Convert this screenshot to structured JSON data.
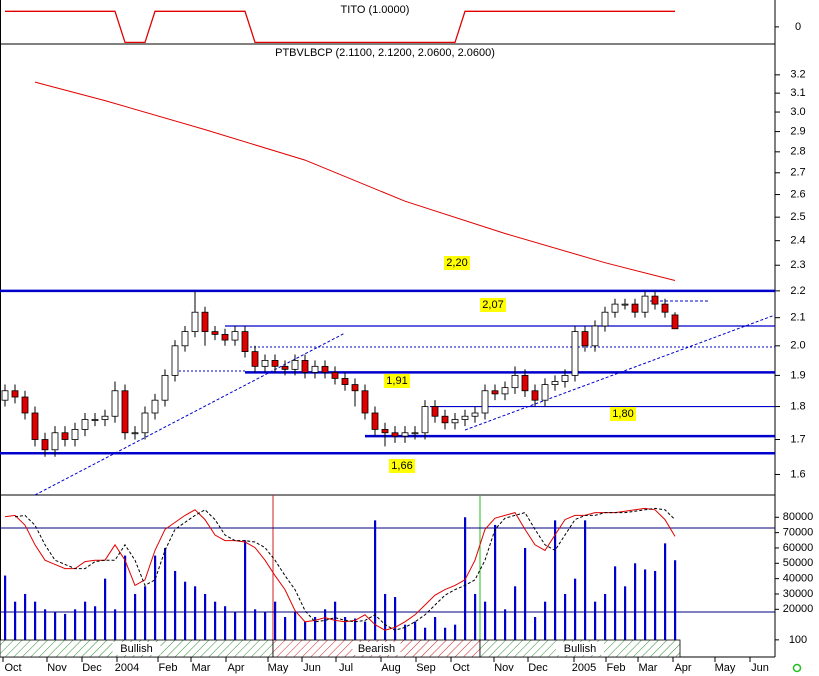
{
  "chart_data": [
    {
      "type": "step",
      "title": "TITO (1.0000)",
      "color": "#e00000",
      "values": [
        1,
        1,
        1,
        1,
        1,
        1,
        1,
        1,
        1,
        1,
        1,
        1,
        -1,
        -1,
        -1,
        1,
        1,
        1,
        1,
        1,
        1,
        1,
        1,
        1,
        1,
        -1,
        -1,
        -1,
        -1,
        -1,
        -1,
        -1,
        -1,
        -1,
        -1,
        -1,
        -1,
        -1,
        -1,
        -1,
        -1,
        -1,
        -1,
        -1,
        -1,
        -1,
        1,
        1,
        1,
        1,
        1,
        1,
        1,
        1,
        1,
        1,
        1,
        1,
        1,
        1,
        1,
        1,
        1,
        1,
        1,
        1,
        1,
        1
      ],
      "ylim": [
        -1.1,
        1.6
      ],
      "yticks": [
        0
      ]
    },
    {
      "type": "candlestick",
      "title": "PTBVLBCP (2.1100, 2.1200, 2.0600, 2.0600)",
      "open": [
        1.82,
        1.85,
        1.83,
        1.78,
        1.7,
        1.67,
        1.72,
        1.7,
        1.73,
        1.76,
        1.76,
        1.77,
        1.85,
        1.72,
        1.72,
        1.78,
        1.82,
        1.9,
        2.0,
        2.05,
        2.12,
        2.05,
        2.04,
        2.02,
        2.05,
        1.98,
        1.93,
        1.95,
        1.93,
        1.92,
        1.95,
        1.91,
        1.93,
        1.91,
        1.89,
        1.87,
        1.85,
        1.78,
        1.73,
        1.72,
        1.71,
        1.72,
        1.72,
        1.8,
        1.77,
        1.75,
        1.76,
        1.77,
        1.78,
        1.85,
        1.84,
        1.86,
        1.9,
        1.85,
        1.82,
        1.87,
        1.88,
        1.9,
        2.05,
        2.0,
        2.07,
        2.12,
        2.15,
        2.15,
        2.12,
        2.18,
        2.15,
        2.11
      ],
      "high": [
        1.87,
        1.87,
        1.85,
        1.8,
        1.72,
        1.74,
        1.74,
        1.75,
        1.78,
        1.78,
        1.79,
        1.88,
        1.87,
        1.74,
        1.8,
        1.84,
        1.92,
        2.02,
        2.07,
        2.2,
        2.14,
        2.07,
        2.06,
        2.07,
        2.07,
        2.0,
        1.97,
        1.97,
        1.95,
        1.97,
        1.97,
        1.95,
        1.95,
        1.93,
        1.91,
        1.89,
        1.87,
        1.8,
        1.75,
        1.74,
        1.74,
        1.74,
        1.82,
        1.82,
        1.79,
        1.78,
        1.79,
        1.8,
        1.87,
        1.87,
        1.88,
        1.93,
        1.92,
        1.87,
        1.89,
        1.9,
        1.92,
        2.07,
        2.07,
        2.09,
        2.14,
        2.17,
        2.17,
        2.17,
        2.2,
        2.2,
        2.17,
        2.12
      ],
      "low": [
        1.8,
        1.81,
        1.76,
        1.68,
        1.65,
        1.65,
        1.68,
        1.68,
        1.71,
        1.74,
        1.74,
        1.75,
        1.7,
        1.7,
        1.7,
        1.76,
        1.8,
        1.88,
        1.98,
        2.03,
        2.0,
        2.02,
        2.0,
        2.0,
        1.96,
        1.91,
        1.91,
        1.91,
        1.9,
        1.9,
        1.89,
        1.89,
        1.89,
        1.87,
        1.85,
        1.8,
        1.76,
        1.71,
        1.68,
        1.69,
        1.69,
        1.7,
        1.7,
        1.75,
        1.73,
        1.73,
        1.74,
        1.75,
        1.76,
        1.82,
        1.82,
        1.84,
        1.83,
        1.8,
        1.8,
        1.85,
        1.86,
        1.88,
        1.98,
        1.98,
        2.05,
        2.1,
        2.13,
        2.1,
        2.1,
        2.13,
        2.1,
        2.06
      ],
      "close": [
        1.85,
        1.83,
        1.78,
        1.7,
        1.67,
        1.72,
        1.7,
        1.73,
        1.76,
        1.76,
        1.77,
        1.85,
        1.72,
        1.72,
        1.78,
        1.82,
        1.9,
        2.0,
        2.05,
        2.12,
        2.05,
        2.04,
        2.02,
        2.05,
        1.98,
        1.93,
        1.95,
        1.93,
        1.92,
        1.95,
        1.91,
        1.93,
        1.91,
        1.89,
        1.87,
        1.85,
        1.78,
        1.73,
        1.72,
        1.71,
        1.72,
        1.72,
        1.8,
        1.77,
        1.75,
        1.76,
        1.77,
        1.78,
        1.85,
        1.84,
        1.86,
        1.9,
        1.85,
        1.82,
        1.87,
        1.88,
        1.9,
        2.05,
        2.0,
        2.07,
        2.12,
        2.15,
        2.15,
        2.12,
        2.18,
        2.15,
        2.12,
        2.06
      ],
      "up_color": "#ffffff",
      "down_color": "#e00000",
      "ma_x": [
        3,
        10,
        20,
        30,
        40,
        50,
        60,
        67
      ],
      "ma_values": [
        3.16,
        3.06,
        2.91,
        2.76,
        2.57,
        2.43,
        2.31,
        2.24
      ],
      "ma_color": "#e00000",
      "levels": [
        {
          "value": 2.2,
          "label": "2,20",
          "thick": true,
          "start": -0.5
        },
        {
          "value": 2.07,
          "label": "2,07",
          "thick": false,
          "start": 22
        },
        {
          "value": 1.91,
          "label": "1,91",
          "thick": true,
          "start": 24
        },
        {
          "value": 1.8,
          "label": "1,80",
          "thick": false,
          "start": 42.5
        },
        {
          "value": 1.71,
          "label": null,
          "thick": true,
          "start": 36
        },
        {
          "value": 1.66,
          "label": "1,66",
          "thick": true,
          "start": -0.5
        }
      ],
      "level_color": "#0000cc",
      "log": true,
      "ylim": [
        1.544,
        3.37
      ],
      "xlim": [
        -0.5,
        77
      ],
      "yticks": [
        3.2,
        3.1,
        {
          "value": 3,
          "label": "3.0"
        },
        2.9,
        2.8,
        2.7,
        2.6,
        2.5,
        2.4,
        2.3,
        2.2,
        2.1,
        {
          "value": 2,
          "label": "2.0"
        },
        1.9,
        1.8,
        1.7,
        1.6
      ]
    },
    {
      "type": "volume",
      "color": "#0000cc",
      "values": [
        42000,
        25000,
        30000,
        25000,
        20000,
        18000,
        17000,
        20000,
        25000,
        22000,
        40000,
        20000,
        55000,
        30000,
        35000,
        55000,
        60000,
        45000,
        38000,
        35000,
        30000,
        25000,
        22000,
        18000,
        65000,
        20000,
        18000,
        25000,
        15000,
        18000,
        12000,
        15000,
        20000,
        25000,
        15000,
        14000,
        12000,
        78000,
        30000,
        28000,
        10000,
        12000,
        8000,
        15000,
        8000,
        10000,
        80000,
        30000,
        25000,
        75000,
        20000,
        35000,
        60000,
        15000,
        25000,
        78000,
        30000,
        40000,
        78000,
        25000,
        30000,
        48000,
        35000,
        50000,
        46000,
        45000,
        63000,
        52000
      ],
      "ylim": [
        0,
        88000
      ],
      "yticks": [
        80000,
        70000,
        60000,
        50000,
        40000,
        30000,
        20000,
        100
      ],
      "oscillator": {
        "ylim": [
          0,
          100
        ],
        "levels": [
          80,
          20
        ],
        "level_color": "#000080",
        "series": [
          {
            "color": "#e00000",
            "dashed": false,
            "values": [
              88,
              89,
              82,
              68,
              57,
              54,
              51,
              51,
              56,
              57,
              57,
              68,
              57,
              39,
              43,
              64,
              79,
              84,
              89,
              93,
              86,
              75,
              71,
              71,
              70,
              66,
              57,
              46,
              36,
              21,
              13,
              14,
              16,
              14,
              13,
              14,
              18,
              11,
              7,
              9,
              13,
              18,
              25,
              32,
              36,
              39,
              43,
              57,
              79,
              87,
              89,
              91,
              79,
              68,
              64,
              75,
              86,
              89,
              89,
              91,
              91,
              91,
              92,
              93,
              94,
              93,
              86,
              74
            ]
          },
          {
            "color": "#000000",
            "dashed": true,
            "values": [
              null,
              88,
              89,
              82,
              68,
              57,
              54,
              51,
              51,
              56,
              57,
              57,
              68,
              57,
              39,
              43,
              64,
              79,
              84,
              89,
              93,
              86,
              75,
              71,
              71,
              70,
              66,
              57,
              46,
              36,
              21,
              13,
              14,
              16,
              14,
              13,
              14,
              18,
              11,
              7,
              9,
              13,
              18,
              25,
              32,
              36,
              39,
              43,
              57,
              79,
              87,
              89,
              91,
              79,
              68,
              64,
              75,
              86,
              89,
              89,
              91,
              91,
              91,
              92,
              93,
              94,
              93,
              86
            ]
          }
        ]
      },
      "regimes": [
        {
          "label": "Bullish",
          "start": -0.5,
          "end": 26.8,
          "color": "#2e8b2e"
        },
        {
          "label": "Bearish",
          "start": 26.8,
          "end": 47.5,
          "color": "#d02020"
        },
        {
          "label": "Bullish",
          "start": 47.5,
          "end": 67.5,
          "color": "#2e8b2e"
        }
      ],
      "xlim": [
        -0.5,
        77
      ],
      "xticks": [
        {
          "value": 0.8,
          "label": "Oct"
        },
        {
          "value": 5.2,
          "label": "Nov"
        },
        {
          "value": 8.7,
          "label": "Dec"
        },
        {
          "value": 12.2,
          "label": "2004"
        },
        {
          "value": 16.3,
          "label": "Feb"
        },
        {
          "value": 19.6,
          "label": "Mar"
        },
        {
          "value": 23.1,
          "label": "Apr"
        },
        {
          "value": 27.3,
          "label": "May"
        },
        {
          "value": 30.7,
          "label": "Jun"
        },
        {
          "value": 34.1,
          "label": "Jul"
        },
        {
          "value": 38.6,
          "label": "Aug"
        },
        {
          "value": 42.1,
          "label": "Sep"
        },
        {
          "value": 45.6,
          "label": "Oct"
        },
        {
          "value": 49.9,
          "label": "Nov"
        },
        {
          "value": 53.3,
          "label": "Dec"
        },
        {
          "value": 57.9,
          "label": "2005"
        },
        {
          "value": 61.1,
          "label": "Feb"
        },
        {
          "value": 64.3,
          "label": "Mar"
        },
        {
          "value": 67.8,
          "label": "Apr"
        },
        {
          "value": 72,
          "label": "May"
        },
        {
          "value": 75.5,
          "label": "Jun"
        }
      ]
    }
  ]
}
